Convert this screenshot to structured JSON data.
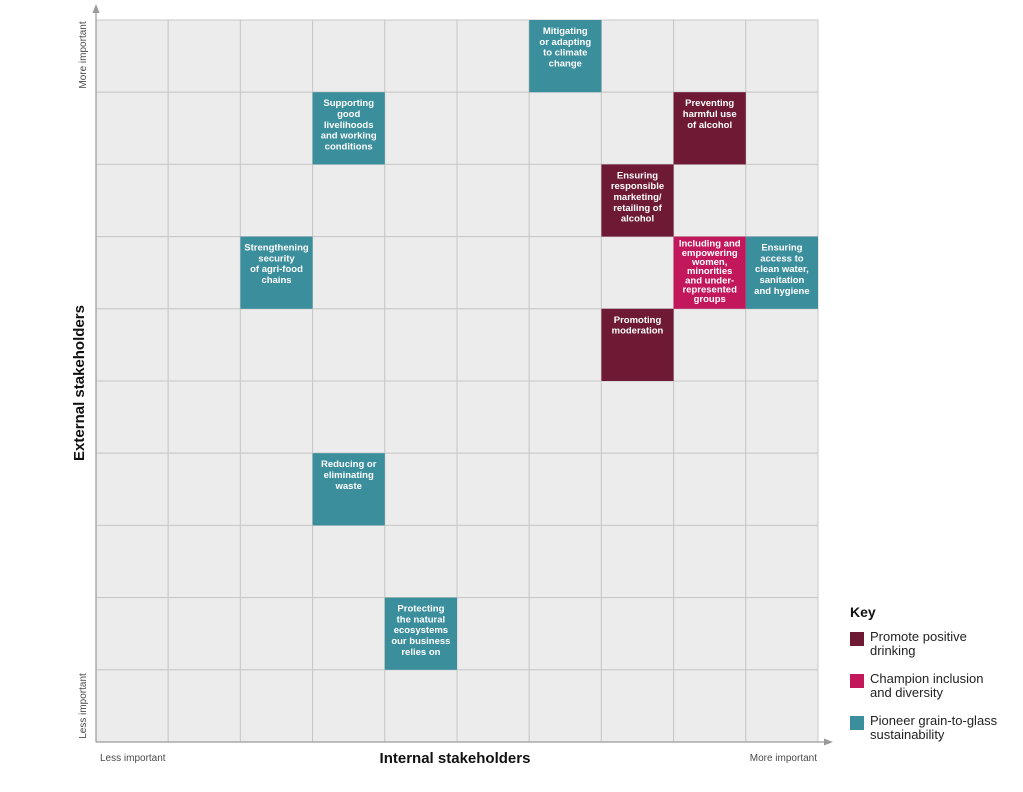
{
  "chart_data": {
    "type": "matrix",
    "xlabel": "Internal stakeholders",
    "ylabel": "External stakeholders",
    "x_low": "Less important",
    "x_high": "More important",
    "y_low": "Less important",
    "y_high": "More important",
    "grid": {
      "cols": 10,
      "rows": 10
    },
    "categories": [
      {
        "id": "drinking",
        "name": "Promote positive drinking",
        "color": "#6e1a35"
      },
      {
        "id": "inclusion",
        "name": "Champion inclusion and diversity",
        "color": "#c2185b"
      },
      {
        "id": "sustainability",
        "name": "Pioneer grain-to-glass sustainability",
        "color": "#3b8e9c"
      }
    ],
    "points": [
      {
        "label": "Mitigating or adapting to climate change",
        "lines": [
          "Mitigating",
          "or adapting",
          "to climate",
          "change"
        ],
        "internal": 7,
        "external": 10,
        "category": "sustainability"
      },
      {
        "label": "Supporting good livelihoods and working conditions",
        "lines": [
          "Supporting",
          "good",
          "livelihoods",
          "and working",
          "conditions"
        ],
        "internal": 4,
        "external": 9,
        "category": "sustainability"
      },
      {
        "label": "Preventing harmful use of alcohol",
        "lines": [
          "Preventing",
          "harmful use",
          "of alcohol"
        ],
        "internal": 9,
        "external": 9,
        "category": "drinking"
      },
      {
        "label": "Ensuring responsible marketing/retailing of alcohol",
        "lines": [
          "Ensuring",
          "responsible",
          "marketing/",
          "retailing of",
          "alcohol"
        ],
        "internal": 8,
        "external": 8,
        "category": "drinking"
      },
      {
        "label": "Strengthening security of agri-food chains",
        "lines": [
          "Strengthening",
          "security",
          "of agri-food",
          "chains"
        ],
        "internal": 3,
        "external": 7,
        "category": "sustainability"
      },
      {
        "label": "Including and empowering women, minorities and under-represented groups",
        "lines": [
          "Including and",
          "empowering",
          "women,",
          "minorities",
          "and under-",
          "represented",
          "groups"
        ],
        "internal": 9,
        "external": 7,
        "category": "inclusion"
      },
      {
        "label": "Ensuring access to clean water, sanitation and hygiene",
        "lines": [
          "Ensuring",
          "access to",
          "clean water,",
          "sanitation",
          "and hygiene"
        ],
        "internal": 10,
        "external": 7,
        "category": "sustainability"
      },
      {
        "label": "Promoting moderation",
        "lines": [
          "Promoting",
          "moderation"
        ],
        "internal": 8,
        "external": 6,
        "category": "drinking"
      },
      {
        "label": "Reducing or eliminating waste",
        "lines": [
          "Reducing or",
          "eliminating",
          "waste"
        ],
        "internal": 4,
        "external": 4,
        "category": "sustainability"
      },
      {
        "label": "Protecting the natural ecosystems our business relies on",
        "lines": [
          "Protecting",
          "the natural",
          "ecosystems",
          "our business",
          "relies on"
        ],
        "internal": 5,
        "external": 2,
        "category": "sustainability"
      }
    ]
  },
  "key": {
    "title": "Key",
    "items": [
      {
        "lines": [
          "Promote positive",
          "drinking"
        ],
        "color": "#6e1a35"
      },
      {
        "lines": [
          "Champion inclusion",
          "and diversity"
        ],
        "color": "#c2185b"
      },
      {
        "lines": [
          "Pioneer grain-to-glass",
          "sustainability"
        ],
        "color": "#3b8e9c"
      }
    ]
  }
}
